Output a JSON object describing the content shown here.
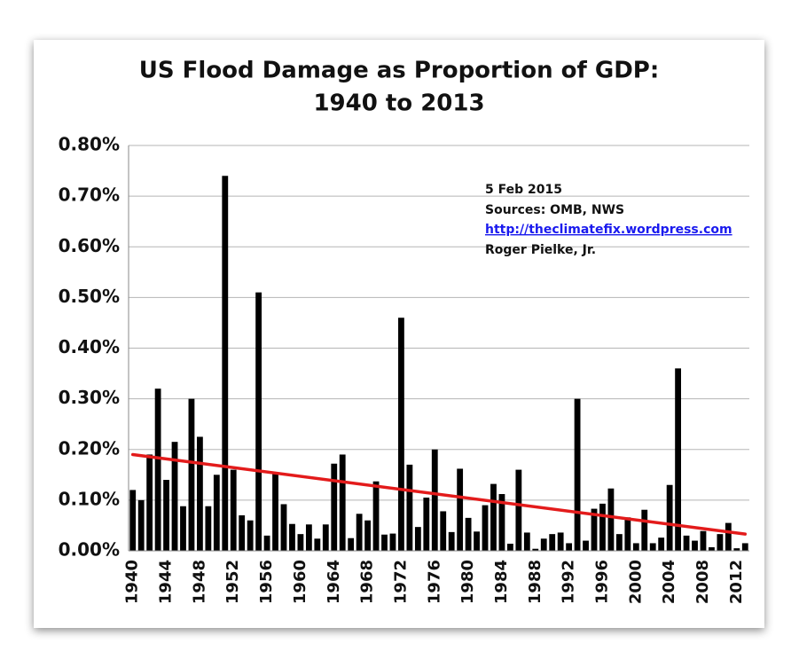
{
  "chart_data": {
    "type": "bar",
    "title": [
      "US Flood Damage as Proportion of GDP:",
      "1940 to 2013"
    ],
    "annotations": [
      "5 Feb 2015",
      "Sources: OMB, NWS",
      "http://theclimatefix.wordpress.com",
      "Roger Pielke, Jr."
    ],
    "categories": [
      "1940",
      null,
      null,
      null,
      "1944",
      null,
      null,
      null,
      "1948",
      null,
      null,
      null,
      "1952",
      null,
      null,
      null,
      "1956",
      null,
      null,
      null,
      "1960",
      null,
      null,
      null,
      "1964",
      null,
      null,
      null,
      "1968",
      null,
      null,
      null,
      "1972",
      null,
      null,
      null,
      "1976",
      null,
      null,
      null,
      "1980",
      null,
      null,
      null,
      "1984",
      null,
      null,
      null,
      "1988",
      null,
      null,
      null,
      "1992",
      null,
      null,
      null,
      "1996",
      null,
      null,
      null,
      "2000",
      null,
      null,
      null,
      "2004",
      null,
      null,
      null,
      "2008",
      null,
      null,
      null,
      "2012",
      null
    ],
    "values": [
      0.12,
      0.1,
      0.19,
      0.32,
      0.14,
      0.215,
      0.088,
      0.3,
      0.225,
      0.088,
      0.15,
      0.74,
      0.16,
      0.07,
      0.06,
      0.51,
      0.03,
      0.155,
      0.092,
      0.053,
      0.033,
      0.052,
      0.024,
      0.052,
      0.172,
      0.19,
      0.025,
      0.073,
      0.06,
      0.137,
      0.032,
      0.034,
      0.46,
      0.17,
      0.047,
      0.105,
      0.2,
      0.078,
      0.037,
      0.162,
      0.065,
      0.038,
      0.09,
      0.132,
      0.112,
      0.014,
      0.16,
      0.036,
      0.004,
      0.024,
      0.033,
      0.036,
      0.015,
      0.3,
      0.02,
      0.083,
      0.093,
      0.123,
      0.033,
      0.066,
      0.015,
      0.081,
      0.015,
      0.026,
      0.13,
      0.36,
      0.03,
      0.02,
      0.039,
      0.007,
      0.033,
      0.055,
      0.005,
      0.015
    ],
    "color": "#000000",
    "trendline": {
      "color": "#e31b1b",
      "values": [
        0.19,
        0.033
      ]
    },
    "ylim": [
      0,
      0.8
    ],
    "yticks": [
      {
        "value": 0,
        "label": "0.00%"
      },
      {
        "value": 0.1,
        "label": "0.10%"
      },
      {
        "value": 0.2,
        "label": "0.20%"
      },
      {
        "value": 0.3,
        "label": "0.30%"
      },
      {
        "value": 0.4,
        "label": "0.40%"
      },
      {
        "value": 0.5,
        "label": "0.50%"
      },
      {
        "value": 0.6,
        "label": "0.60%"
      },
      {
        "value": 0.7,
        "label": "0.70%"
      },
      {
        "value": 0.8,
        "label": "0.80%"
      }
    ],
    "grid": true
  }
}
